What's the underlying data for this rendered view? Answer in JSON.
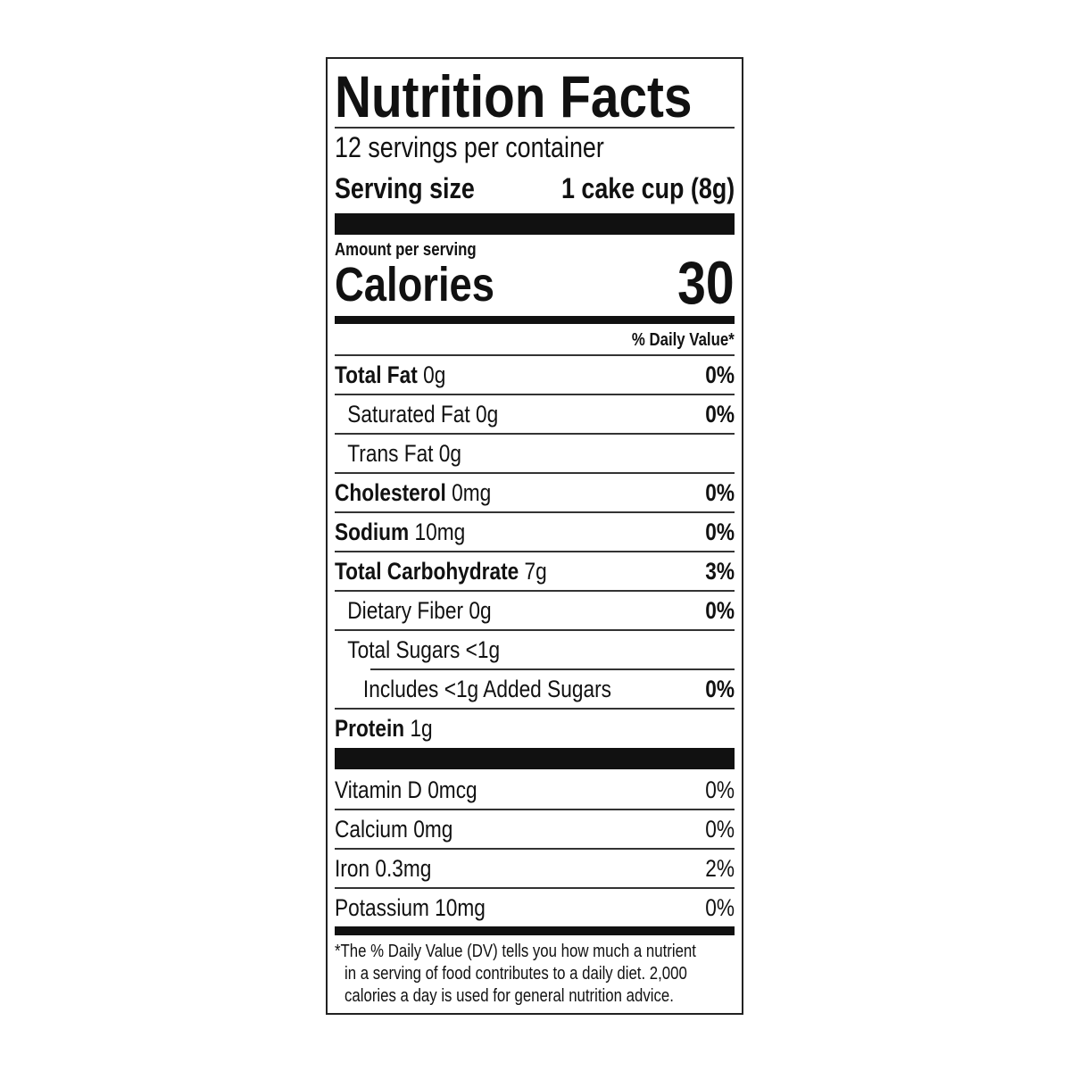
{
  "title": "Nutrition Facts",
  "servings_per_container": "12 servings per container",
  "serving_size": {
    "label": "Serving size",
    "value": "1 cake cup (8g)"
  },
  "amount_per_serving": "Amount per serving",
  "calories": {
    "label": "Calories",
    "value": "30"
  },
  "daily_value_header": "% Daily Value*",
  "nutrients": [
    {
      "name": "Total Fat",
      "amount": "0g",
      "dv": "0%",
      "bold": true,
      "indent": 0
    },
    {
      "name": "Saturated Fat",
      "amount": "0g",
      "dv": "0%",
      "bold": false,
      "indent": 1
    },
    {
      "name": "Trans Fat",
      "amount": "0g",
      "dv": "",
      "bold": false,
      "indent": 1
    },
    {
      "name": "Cholesterol",
      "amount": "0mg",
      "dv": "0%",
      "bold": true,
      "indent": 0
    },
    {
      "name": "Sodium",
      "amount": "10mg",
      "dv": "0%",
      "bold": true,
      "indent": 0
    },
    {
      "name": "Total Carbohydrate",
      "amount": "7g",
      "dv": "3%",
      "bold": true,
      "indent": 0
    },
    {
      "name": "Dietary Fiber",
      "amount": "0g",
      "dv": "0%",
      "bold": false,
      "indent": 1
    },
    {
      "name": "Total Sugars",
      "amount": "<1g",
      "dv": "",
      "bold": false,
      "indent": 1
    },
    {
      "name": "Includes <1g Added Sugars",
      "amount": "",
      "dv": "0%",
      "bold": false,
      "indent": 2
    },
    {
      "name": "Protein",
      "amount": "1g",
      "dv": "",
      "bold": true,
      "indent": 0
    }
  ],
  "vitamins": [
    {
      "name": "Vitamin D 0mcg",
      "dv": "0%"
    },
    {
      "name": "Calcium 0mg",
      "dv": "0%"
    },
    {
      "name": "Iron 0.3mg",
      "dv": "2%"
    },
    {
      "name": "Potassium 10mg",
      "dv": "0%"
    }
  ],
  "footnote": [
    "*The % Daily Value (DV) tells you how much a nutrient",
    "in a serving of food contributes to a daily diet. 2,000",
    "calories a day is used for general nutrition advice."
  ]
}
